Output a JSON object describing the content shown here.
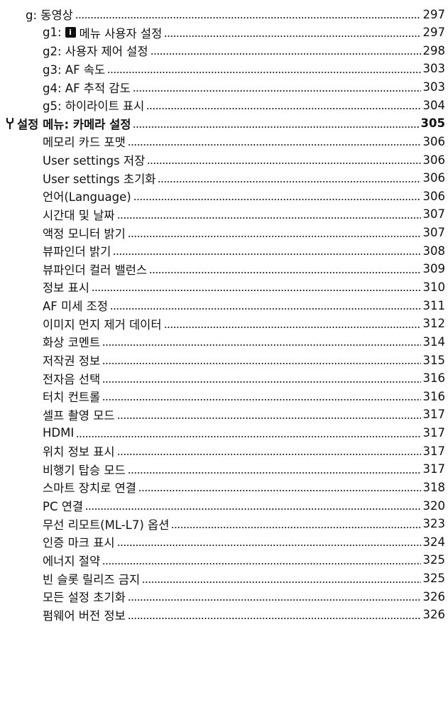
{
  "toc": {
    "entries": [
      {
        "label": "g: 동영상",
        "page": "297",
        "level": 1
      },
      {
        "label": "g1:",
        "icon": "i",
        "label_rest": "메뉴 사용자 설정",
        "page": "297",
        "level": 2
      },
      {
        "label": "g2: 사용자 제어 설정",
        "page": "298",
        "level": 2
      },
      {
        "label": "g3: AF 속도",
        "page": "303",
        "level": 2
      },
      {
        "label": "g4: AF 추적 감도",
        "page": "303",
        "level": 2
      },
      {
        "label": "g5: 하이라이트 표시",
        "page": "304",
        "level": 2
      },
      {
        "label": "설정 메뉴: 카메라 설정",
        "page": "305",
        "level": 0
      },
      {
        "label": "메모리 카드 포맷",
        "page": "306",
        "level": 2
      },
      {
        "label": "User settings 저장",
        "page": "306",
        "level": 2
      },
      {
        "label": "User settings 초기화",
        "page": "306",
        "level": 2
      },
      {
        "label": "언어(Language)",
        "page": "306",
        "level": 2
      },
      {
        "label": "시간대 및 날짜",
        "page": "307",
        "level": 2
      },
      {
        "label": "액정 모니터 밝기",
        "page": "307",
        "level": 2
      },
      {
        "label": "뷰파인더 밝기",
        "page": "308",
        "level": 2
      },
      {
        "label": "뷰파인더 컬러 밸런스",
        "page": "309",
        "level": 2
      },
      {
        "label": "정보 표시",
        "page": "310",
        "level": 2
      },
      {
        "label": "AF 미세 조정",
        "page": "311",
        "level": 2
      },
      {
        "label": "이미지 먼지 제거 데이터",
        "page": "312",
        "level": 2
      },
      {
        "label": "화상 코멘트",
        "page": "314",
        "level": 2
      },
      {
        "label": "저작권 정보",
        "page": "315",
        "level": 2
      },
      {
        "label": "전자음 선택",
        "page": "316",
        "level": 2
      },
      {
        "label": "터치 컨트롤",
        "page": "316",
        "level": 2
      },
      {
        "label": "셀프 촬영 모드",
        "page": "317",
        "level": 2
      },
      {
        "label": "HDMI",
        "page": "317",
        "level": 2
      },
      {
        "label": "위치 정보 표시",
        "page": "317",
        "level": 2
      },
      {
        "label": "비행기 탑승 모드",
        "page": "317",
        "level": 2
      },
      {
        "label": "스마트 장치로 연결",
        "page": "318",
        "level": 2
      },
      {
        "label": "PC 연결",
        "page": "320",
        "level": 2
      },
      {
        "label": "무선 리모트(ML-L7) 옵션",
        "page": "323",
        "level": 2
      },
      {
        "label": "인증 마크 표시",
        "page": "324",
        "level": 2
      },
      {
        "label": "에너지 절약",
        "page": "325",
        "level": 2
      },
      {
        "label": "빈 슬롯 릴리즈 금지",
        "page": "325",
        "level": 2
      },
      {
        "label": "모든 설정 초기화",
        "page": "326",
        "level": 2
      },
      {
        "label": "펌웨어 버전 정보",
        "page": "326",
        "level": 2
      }
    ]
  }
}
